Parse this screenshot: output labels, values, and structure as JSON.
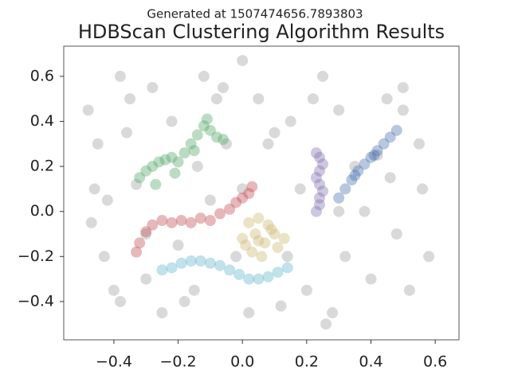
{
  "chart_data": {
    "type": "scatter",
    "subtitle": "Generated at 1507474656.7893803",
    "title": "HDBScan Clustering Algorithm Results",
    "xlim": [
      -0.556,
      0.674
    ],
    "ylim": [
      -0.57,
      0.734
    ],
    "xticks": [
      {
        "value": -0.4,
        "label": "−0.4"
      },
      {
        "value": -0.2,
        "label": "−0.2"
      },
      {
        "value": 0.0,
        "label": "0.0"
      },
      {
        "value": 0.2,
        "label": "0.2"
      },
      {
        "value": 0.4,
        "label": "0.4"
      },
      {
        "value": 0.6,
        "label": "0.6"
      }
    ],
    "yticks": [
      {
        "value": -0.4,
        "label": "−0.4"
      },
      {
        "value": -0.2,
        "label": "−0.2"
      },
      {
        "value": 0.0,
        "label": "0.0"
      },
      {
        "value": 0.2,
        "label": "0.2"
      },
      {
        "value": 0.4,
        "label": "0.4"
      },
      {
        "value": 0.6,
        "label": "0.6"
      }
    ],
    "alpha": 0.4,
    "series": [
      {
        "color": "#a0a0a0",
        "x": [
          -0.48,
          -0.45,
          -0.42,
          -0.38,
          -0.35,
          -0.3,
          -0.28,
          -0.22,
          -0.18,
          -0.12,
          -0.08,
          -0.05,
          0.0,
          0.05,
          0.1,
          0.15,
          0.2,
          0.25,
          0.3,
          0.35,
          0.4,
          0.45,
          0.5,
          0.55,
          0.58,
          -0.47,
          -0.4,
          -0.33,
          -0.25,
          -0.15,
          -0.02,
          0.08,
          0.18,
          0.28,
          0.38,
          0.48,
          0.56,
          -0.43,
          -0.36,
          -0.2,
          -0.1,
          0.02,
          0.12,
          0.22,
          0.32,
          0.42,
          0.52,
          -0.46,
          -0.3,
          -0.14,
          0.0,
          0.14,
          0.3,
          0.46,
          -0.38,
          -0.06,
          0.26,
          0.5
        ],
        "values": [
          0.45,
          0.3,
          0.05,
          0.6,
          0.5,
          -0.3,
          0.55,
          0.4,
          -0.4,
          0.6,
          0.5,
          0.3,
          0.67,
          0.5,
          0.35,
          0.4,
          -0.35,
          0.6,
          0.45,
          0.2,
          -0.3,
          0.5,
          0.55,
          0.3,
          -0.2,
          -0.05,
          -0.35,
          0.12,
          -0.45,
          -0.35,
          -0.2,
          0.3,
          0.1,
          -0.45,
          0.0,
          -0.1,
          0.1,
          -0.2,
          0.35,
          -0.15,
          0.05,
          -0.45,
          -0.42,
          0.5,
          -0.2,
          0.25,
          -0.35,
          0.1,
          -0.1,
          0.2,
          0.1,
          -0.2,
          0.0,
          0.15,
          -0.4,
          0.55,
          -0.5,
          0.45
        ]
      },
      {
        "color": "#55a868",
        "x": [
          -0.32,
          -0.3,
          -0.28,
          -0.26,
          -0.24,
          -0.22,
          -0.2,
          -0.18,
          -0.16,
          -0.14,
          -0.12,
          -0.1,
          -0.08,
          -0.06,
          -0.27,
          -0.21,
          -0.15,
          -0.11
        ],
        "values": [
          0.15,
          0.18,
          0.2,
          0.22,
          0.23,
          0.24,
          0.22,
          0.26,
          0.3,
          0.34,
          0.38,
          0.36,
          0.33,
          0.32,
          0.12,
          0.17,
          0.27,
          0.41
        ]
      },
      {
        "color": "#c44e52",
        "x": [
          -0.33,
          -0.32,
          -0.3,
          -0.28,
          -0.25,
          -0.22,
          -0.19,
          -0.16,
          -0.13,
          -0.1,
          -0.07,
          -0.04,
          -0.02,
          0.0,
          0.02,
          0.03
        ],
        "values": [
          -0.18,
          -0.14,
          -0.09,
          -0.06,
          -0.04,
          -0.05,
          -0.04,
          -0.05,
          -0.03,
          -0.04,
          -0.01,
          0.01,
          0.04,
          0.06,
          0.08,
          0.11
        ]
      },
      {
        "color": "#64b5cd",
        "x": [
          -0.25,
          -0.22,
          -0.19,
          -0.16,
          -0.13,
          -0.1,
          -0.07,
          -0.04,
          -0.01,
          0.02,
          0.05,
          0.08,
          0.11,
          0.14
        ],
        "values": [
          -0.26,
          -0.25,
          -0.23,
          -0.22,
          -0.22,
          -0.23,
          -0.24,
          -0.26,
          -0.28,
          -0.3,
          -0.3,
          -0.29,
          -0.27,
          -0.25
        ]
      },
      {
        "color": "#ccb974",
        "x": [
          0.02,
          0.05,
          0.08,
          0.1,
          0.0,
          0.04,
          0.07,
          0.11,
          0.03,
          0.06,
          0.09,
          0.13,
          0.01,
          0.05
        ],
        "values": [
          -0.05,
          -0.03,
          -0.06,
          -0.1,
          -0.12,
          -0.1,
          -0.14,
          -0.16,
          -0.18,
          -0.2,
          -0.08,
          -0.12,
          -0.15,
          -0.13
        ]
      },
      {
        "color": "#8172b2",
        "x": [
          0.23,
          0.24,
          0.24,
          0.25,
          0.24,
          0.23,
          0.24,
          0.25,
          0.24,
          0.23
        ],
        "values": [
          0.0,
          0.03,
          0.06,
          0.09,
          0.12,
          0.15,
          0.18,
          0.21,
          0.24,
          0.26
        ]
      },
      {
        "color": "#4c72b0",
        "x": [
          0.3,
          0.32,
          0.34,
          0.36,
          0.38,
          0.4,
          0.42,
          0.44,
          0.46,
          0.48,
          0.35,
          0.41
        ],
        "values": [
          0.06,
          0.1,
          0.14,
          0.18,
          0.21,
          0.24,
          0.27,
          0.3,
          0.33,
          0.36,
          0.16,
          0.25
        ]
      }
    ]
  }
}
